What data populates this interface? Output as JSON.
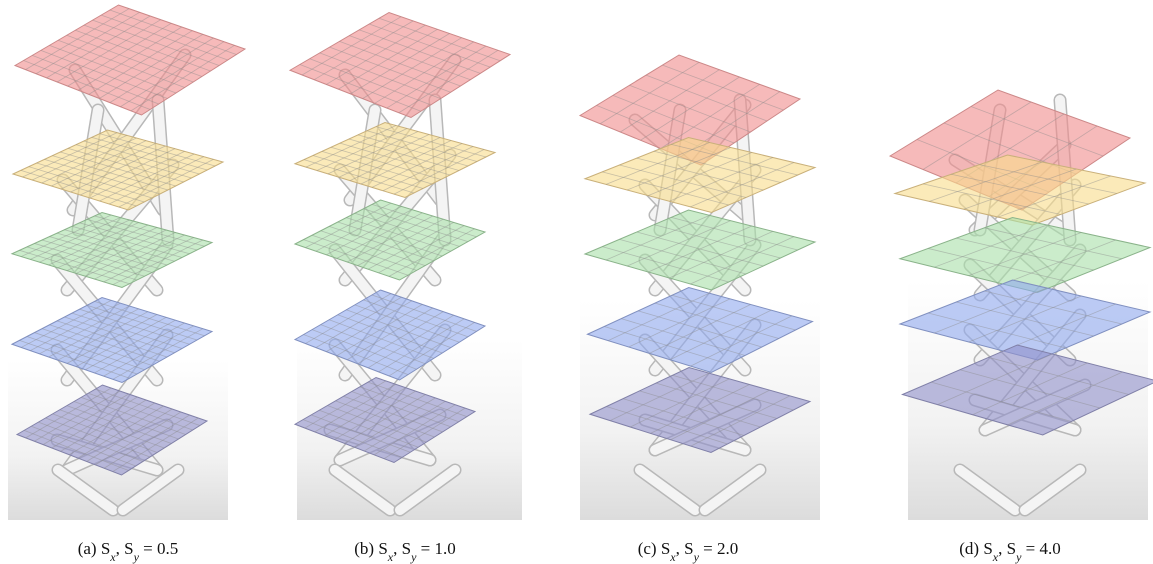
{
  "panels": [
    {
      "caption": [
        {
          "text": "(a) S"
        },
        {
          "text": "x",
          "sub": true
        },
        {
          "text": ", S"
        },
        {
          "text": "y",
          "sub": true
        },
        {
          "text": " = 0.5"
        }
      ]
    },
    {
      "caption": [
        {
          "text": "(b) S"
        },
        {
          "text": "x",
          "sub": true
        },
        {
          "text": ", S"
        },
        {
          "text": "y",
          "sub": true
        },
        {
          "text": " = 1.0"
        }
      ]
    },
    {
      "caption": [
        {
          "text": "(c) S"
        },
        {
          "text": "x",
          "sub": true
        },
        {
          "text": ", S"
        },
        {
          "text": "y",
          "sub": true
        },
        {
          "text": " = 2.0"
        }
      ]
    },
    {
      "caption": [
        {
          "text": "(d) S"
        },
        {
          "text": "x",
          "sub": true
        },
        {
          "text": ", S"
        },
        {
          "text": "y",
          "sub": true
        },
        {
          "text": " = 4.0"
        }
      ]
    }
  ]
}
